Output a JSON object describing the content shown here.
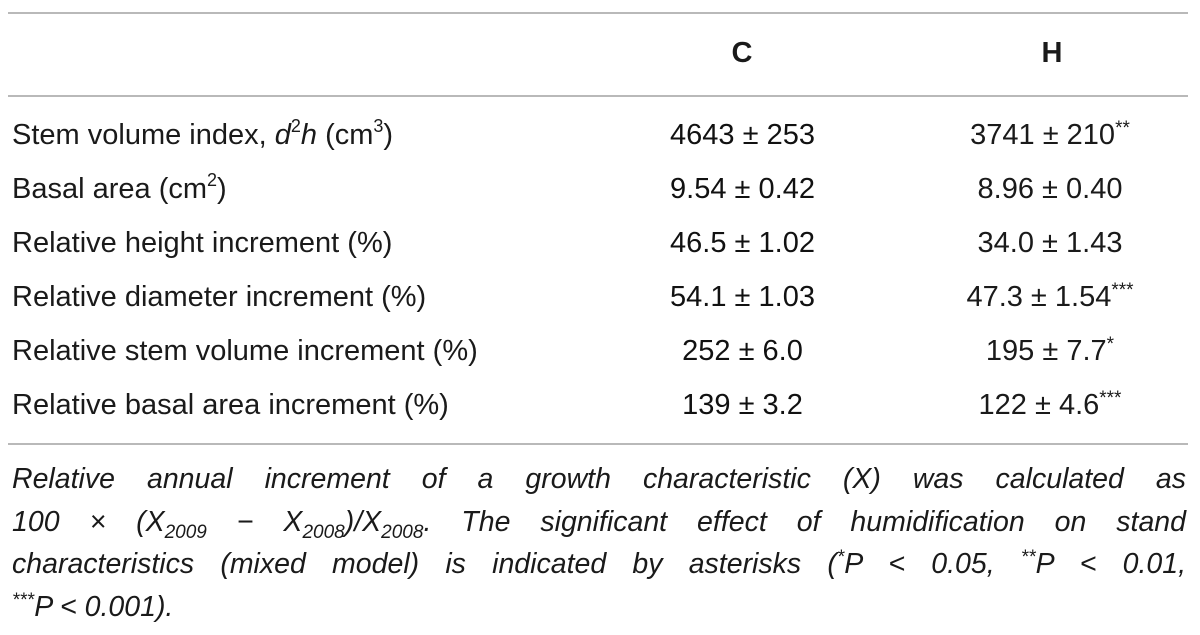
{
  "table": {
    "headers": {
      "label": "",
      "c": "C",
      "h": "H"
    },
    "rows": [
      {
        "label_main": "Stem volume index, ",
        "label_var_d": "d",
        "label_sup_2": "2",
        "label_var_h": "h",
        "label_unit_open": " (cm",
        "label_unit_sup": "3",
        "label_unit_close": ")",
        "c": "4643 ± 253",
        "h": "3741 ± 210",
        "h_stars": "**"
      },
      {
        "label_main": "Basal area (cm",
        "label_unit_sup": "2",
        "label_unit_close": ")",
        "c": "9.54 ± 0.42",
        "h": "8.96 ± 0.40",
        "h_stars": ""
      },
      {
        "label_main": "Relative height increment (%)",
        "c": "46.5 ± 1.02",
        "h": "34.0 ± 1.43",
        "h_stars": ""
      },
      {
        "label_main": "Relative diameter increment (%)",
        "c": "54.1 ± 1.03",
        "h": "47.3 ± 1.54",
        "h_stars": "***"
      },
      {
        "label_main": "Relative stem volume increment (%)",
        "c": "252 ± 6.0",
        "h": "195 ± 7.7",
        "h_stars": "*"
      },
      {
        "label_main": "Relative basal area increment (%)",
        "c": "139 ± 3.2",
        "h": "122 ± 4.6",
        "h_stars": "***"
      }
    ]
  },
  "footnote": {
    "line1": "Relative annual increment of a growth characteristic (X) was calculated as",
    "line2_a": "100 × (X",
    "line2_sub1": "2009",
    "line2_b": " − X",
    "line2_sub2": "2008",
    "line2_c": ")/X",
    "line2_sub3": "2008",
    "line2_d": ". The significant effect of humidification on stand",
    "line3_a": "characteristics (mixed model) is indicated by asterisks (",
    "line3_star1": "*",
    "line3_b": "P < 0.05, ",
    "line3_star2": "**",
    "line3_c": "P < 0.01,",
    "line4_star3": "***",
    "line4_a": "P < 0.001)."
  }
}
